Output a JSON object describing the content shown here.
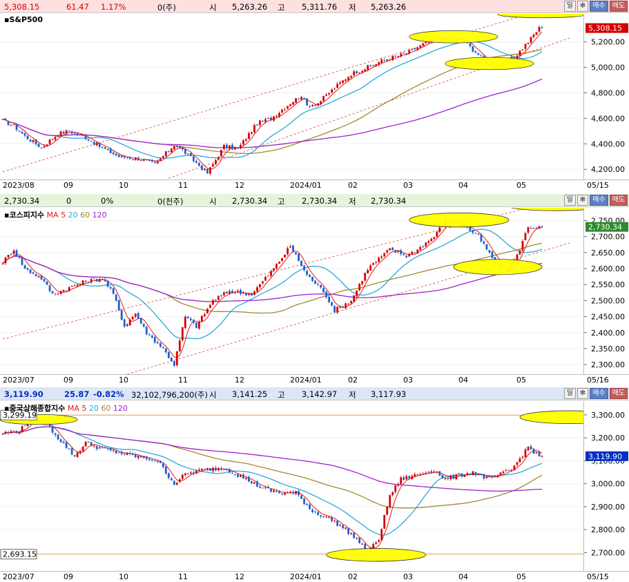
{
  "panels": [
    {
      "name": "S&P500",
      "show_ma_legend": false,
      "header": {
        "bg": "#fde0e0",
        "last": "5,308.15",
        "change_arrow": "▲",
        "change": "61.47",
        "pct": "1.17%",
        "volume": "0(주)",
        "open_label": "시",
        "open": "5,263.26",
        "high_label": "고",
        "high": "5,311.76",
        "low_label": "저",
        "low": "5,263.26"
      },
      "current_price_label": "5,308.15",
      "current_price_value": 5308.15,
      "current_color": "#d40000",
      "right_labels": [],
      "x_labels": [
        "2023/08",
        "09",
        "10",
        "11",
        "12",
        "2024/01",
        "02",
        "03",
        "04",
        "05",
        "05/15"
      ],
      "chart_data": {
        "type": "candlestick",
        "ylim": [
          4120,
          5420
        ],
        "y_ticks": [
          4200,
          4400,
          4600,
          4800,
          5000,
          5200
        ],
        "y_tick_labels": [
          "4,200.00",
          "4,400.00",
          "4,600.00",
          "4,800.00",
          "5,000.00",
          "5,200.00"
        ],
        "anchors": [
          [
            0,
            4580
          ],
          [
            4,
            4540
          ],
          [
            8,
            4460
          ],
          [
            14,
            4370
          ],
          [
            20,
            4480
          ],
          [
            24,
            4500
          ],
          [
            30,
            4450
          ],
          [
            35,
            4380
          ],
          [
            42,
            4300
          ],
          [
            50,
            4280
          ],
          [
            55,
            4240
          ],
          [
            62,
            4390
          ],
          [
            64,
            4370
          ],
          [
            70,
            4250
          ],
          [
            74,
            4170
          ],
          [
            80,
            4380
          ],
          [
            85,
            4360
          ],
          [
            92,
            4560
          ],
          [
            97,
            4600
          ],
          [
            104,
            4720
          ],
          [
            108,
            4780
          ],
          [
            110,
            4700
          ],
          [
            114,
            4720
          ],
          [
            120,
            4840
          ],
          [
            126,
            4950
          ],
          [
            132,
            5000
          ],
          [
            138,
            5060
          ],
          [
            146,
            5110
          ],
          [
            152,
            5180
          ],
          [
            158,
            5230
          ],
          [
            160,
            5210
          ],
          [
            166,
            5220
          ],
          [
            170,
            5140
          ],
          [
            176,
            5020
          ],
          [
            180,
            5010
          ],
          [
            185,
            5080
          ],
          [
            190,
            5200
          ],
          [
            194,
            5308
          ]
        ],
        "n_bars": 196,
        "ma_periods": [
          20,
          60,
          120
        ],
        "ma_colors": [
          "#2aa8d8",
          "#a08a2a",
          "#a020d0"
        ]
      },
      "trend_lines": [
        [
          [
            0,
            4180
          ],
          [
            195,
            5450
          ]
        ],
        [
          [
            60,
            4130
          ],
          [
            205,
            5230
          ]
        ]
      ],
      "ellipses": [
        [
          163,
          5240,
          16,
          48
        ],
        [
          176,
          5030,
          16,
          48
        ],
        [
          195,
          5415,
          16,
          26
        ]
      ]
    },
    {
      "name": "코스피지수",
      "show_ma_legend": true,
      "ma_label": "MA",
      "ma_values": [
        "5",
        "20",
        "60",
        "120"
      ],
      "header": {
        "bg": "#e6f4dc",
        "last": "2,730.34",
        "change_arrow": "",
        "change": "0",
        "pct": "0%",
        "volume": "0(천주)",
        "open_label": "시",
        "open": "2,730.34",
        "high_label": "고",
        "high": "2,730.34",
        "low_label": "저",
        "low": "2,730.34"
      },
      "current_price_label": "2,730.34",
      "current_price_value": 2730.34,
      "current_color": "#2e8b2e",
      "right_labels": [],
      "x_labels": [
        "2023/07",
        "09",
        "10",
        "11",
        "12",
        "2024/01",
        "02",
        "03",
        "04",
        "05",
        "05/16"
      ],
      "chart_data": {
        "type": "candlestick",
        "ylim": [
          2270,
          2790
        ],
        "y_ticks": [
          2300,
          2350,
          2400,
          2450,
          2500,
          2550,
          2600,
          2650,
          2700,
          2750
        ],
        "y_tick_labels": [
          "2,300.00",
          "2,350.00",
          "2,400.00",
          "2,450.00",
          "2,500.00",
          "2,550.00",
          "2,600.00",
          "2,650.00",
          "2,700.00",
          "2,750.00"
        ],
        "anchors": [
          [
            0,
            2620
          ],
          [
            4,
            2660
          ],
          [
            8,
            2600
          ],
          [
            14,
            2570
          ],
          [
            18,
            2520
          ],
          [
            24,
            2540
          ],
          [
            30,
            2560
          ],
          [
            36,
            2570
          ],
          [
            40,
            2520
          ],
          [
            44,
            2420
          ],
          [
            48,
            2460
          ],
          [
            52,
            2400
          ],
          [
            58,
            2350
          ],
          [
            62,
            2300
          ],
          [
            66,
            2450
          ],
          [
            70,
            2420
          ],
          [
            76,
            2500
          ],
          [
            82,
            2530
          ],
          [
            90,
            2520
          ],
          [
            98,
            2600
          ],
          [
            104,
            2670
          ],
          [
            110,
            2580
          ],
          [
            116,
            2530
          ],
          [
            120,
            2470
          ],
          [
            126,
            2500
          ],
          [
            132,
            2600
          ],
          [
            140,
            2660
          ],
          [
            146,
            2640
          ],
          [
            150,
            2660
          ],
          [
            156,
            2700
          ],
          [
            160,
            2750
          ],
          [
            166,
            2740
          ],
          [
            172,
            2700
          ],
          [
            178,
            2620
          ],
          [
            182,
            2590
          ],
          [
            186,
            2640
          ],
          [
            190,
            2730
          ],
          [
            194,
            2730
          ]
        ],
        "n_bars": 196,
        "ma_periods": [
          20,
          60,
          120
        ],
        "ma_colors": [
          "#2aa8d8",
          "#a08a2a",
          "#a020d0"
        ]
      },
      "trend_lines": [
        [
          [
            0,
            2380
          ],
          [
            195,
            2800
          ]
        ],
        [
          [
            45,
            2270
          ],
          [
            205,
            2680
          ]
        ]
      ],
      "ellipses": [
        [
          165,
          2752,
          18,
          22
        ],
        [
          179,
          2605,
          16,
          24
        ],
        [
          200,
          2795,
          17,
          14
        ]
      ]
    },
    {
      "name": "중국상해종합지수",
      "show_ma_legend": true,
      "ma_label": "MA",
      "ma_values": [
        "5",
        "20",
        "60",
        "120"
      ],
      "header": {
        "bg": "#dde6f7",
        "last": "3,119.90",
        "change_arrow": "▼",
        "change": "25.87",
        "pct": "-0.82%",
        "volume": "32,102,796,200(주)",
        "open_label": "시",
        "open": "3,141.25",
        "high_label": "고",
        "high": "3,142.97",
        "low_label": "저",
        "low": "3,117.93"
      },
      "current_price_label": "3,119.90",
      "current_price_value": 3119.9,
      "current_color": "#0030c8",
      "right_labels": [
        {
          "text": "3,299.19",
          "value": 3299.19
        },
        {
          "text": "2,693.15",
          "value": 2693.15
        }
      ],
      "x_labels": [
        "2023/07",
        "09",
        "10",
        "11",
        "12",
        "2024/01",
        "02",
        "03",
        "04",
        "05",
        "05/15"
      ],
      "chart_data": {
        "type": "candlestick",
        "ylim": [
          2620,
          3360
        ],
        "y_ticks": [
          2700,
          2800,
          2900,
          3000,
          3100,
          3200,
          3300
        ],
        "y_tick_labels": [
          "2,700.00",
          "2,800.00",
          "2,900.00",
          "3,000.00",
          "3,100.00",
          "3,200.00",
          "3,300.00"
        ],
        "anchors": [
          [
            0,
            3220
          ],
          [
            6,
            3230
          ],
          [
            10,
            3280
          ],
          [
            16,
            3260
          ],
          [
            20,
            3200
          ],
          [
            26,
            3120
          ],
          [
            30,
            3180
          ],
          [
            34,
            3160
          ],
          [
            40,
            3140
          ],
          [
            48,
            3120
          ],
          [
            56,
            3100
          ],
          [
            62,
            3000
          ],
          [
            66,
            3040
          ],
          [
            72,
            3060
          ],
          [
            80,
            3070
          ],
          [
            88,
            3020
          ],
          [
            94,
            2980
          ],
          [
            100,
            2960
          ],
          [
            106,
            2960
          ],
          [
            112,
            2880
          ],
          [
            118,
            2850
          ],
          [
            124,
            2800
          ],
          [
            128,
            2760
          ],
          [
            132,
            2700
          ],
          [
            136,
            2760
          ],
          [
            140,
            2950
          ],
          [
            144,
            3020
          ],
          [
            150,
            3040
          ],
          [
            156,
            3060
          ],
          [
            160,
            3020
          ],
          [
            166,
            3040
          ],
          [
            170,
            3050
          ],
          [
            176,
            3020
          ],
          [
            184,
            3060
          ],
          [
            190,
            3160
          ],
          [
            194,
            3120
          ]
        ],
        "n_bars": 196,
        "ma_periods": [
          20,
          60,
          120
        ],
        "ma_colors": [
          "#2aa8d8",
          "#a08a2a",
          "#a020d0"
        ]
      },
      "trend_lines": [],
      "h_lines": [
        3299.19,
        2693.15
      ],
      "ellipses": [
        [
          13,
          3280,
          14,
          22
        ],
        [
          135,
          2690,
          18,
          28
        ],
        [
          205,
          3290,
          18,
          28
        ]
      ]
    }
  ],
  "buttons": {
    "period": "일",
    "gear": "✻",
    "buy": "매수",
    "sell": "매도"
  },
  "colors": {
    "up": "#d40000",
    "down": "#1a5fd0",
    "ma5": "#e01818",
    "ellipse": "#ffff00",
    "trend": "#d04040"
  }
}
